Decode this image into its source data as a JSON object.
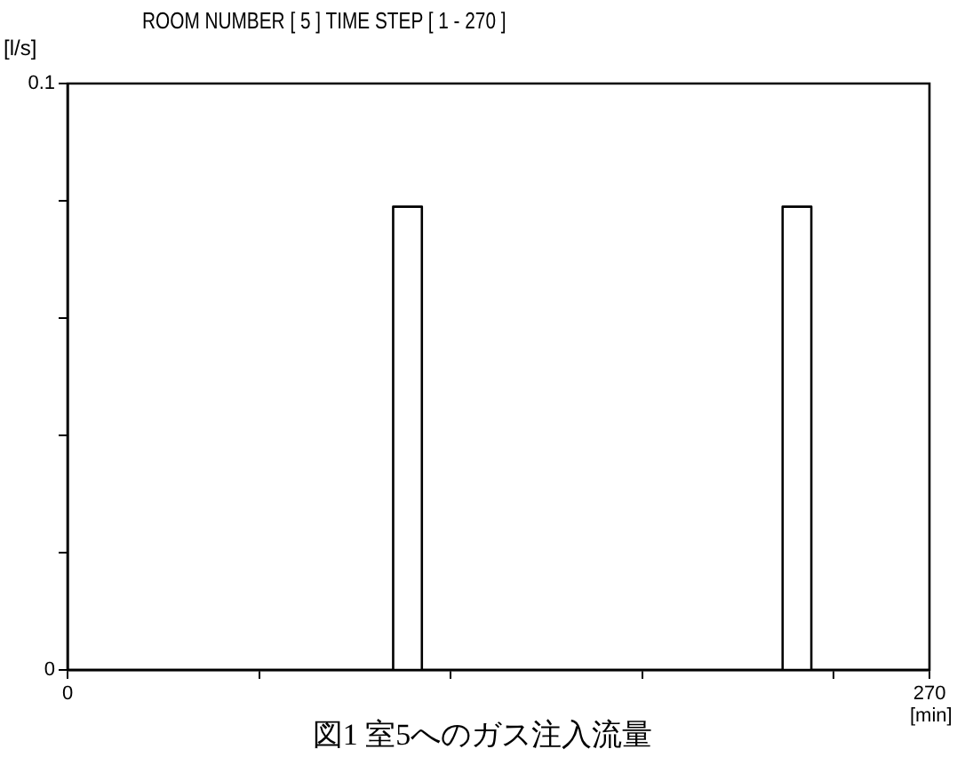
{
  "chart_data": {
    "type": "line",
    "title": "ROOM NUMBER [ 5 ]   TIME STEP [ 1 - 270 ]",
    "ylabel": "[l/s]",
    "xlabel": "[min]",
    "annotations": [
      "図1 室5へのガス注入流量"
    ],
    "series": [
      {
        "color": "#000000",
        "x": [
          0,
          102,
          102,
          111,
          111,
          224,
          224,
          233,
          233,
          270
        ],
        "values": [
          0,
          0,
          0.079,
          0.079,
          0,
          0,
          0.079,
          0.079,
          0,
          0
        ]
      }
    ],
    "xlim": [
      0,
      270
    ],
    "xticks": [
      0,
      {
        "value": 60,
        "label": null
      },
      {
        "value": 120,
        "label": null
      },
      {
        "value": 180,
        "label": null
      },
      {
        "value": 240,
        "label": null
      },
      270
    ],
    "ylim": [
      0,
      0.1
    ],
    "yticks": [
      0,
      {
        "value": 0.02,
        "label": null
      },
      {
        "value": 0.04,
        "label": null
      },
      {
        "value": 0.06,
        "label": null
      },
      {
        "value": 0.08,
        "label": null
      },
      0.1
    ],
    "grid": false,
    "legend": false,
    "marker": "none",
    "line_style": "solid"
  }
}
